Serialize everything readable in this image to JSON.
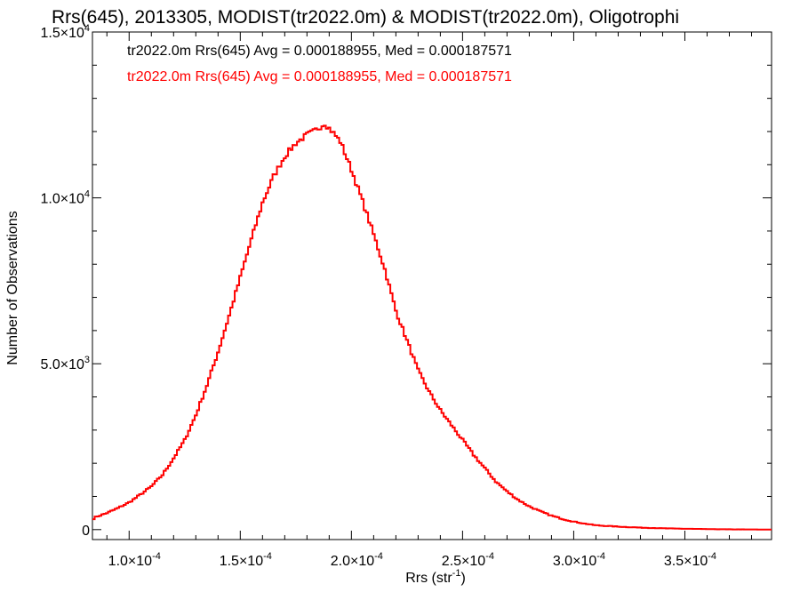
{
  "chart_data": {
    "type": "line",
    "title": "Rrs(645), 2013305, MODIST(tr2022.0m) & MODIST(tr2022.0m), Oligotrophi",
    "xlabel": "Rrs (str",
    "xlabel_sup": "-1",
    "xlabel_close": ")",
    "ylabel": "Number of Observations",
    "xlim": [
      8.35e-05,
      0.000389
    ],
    "ylim": [
      -300,
      15000
    ],
    "x_ticks": [
      {
        "value": 0.0001,
        "mant": "1.0×10",
        "exp": "-4"
      },
      {
        "value": 0.00015,
        "mant": "1.5×10",
        "exp": "-4"
      },
      {
        "value": 0.0002,
        "mant": "2.0×10",
        "exp": "-4"
      },
      {
        "value": 0.00025,
        "mant": "2.5×10",
        "exp": "-4"
      },
      {
        "value": 0.0003,
        "mant": "3.0×10",
        "exp": "-4"
      },
      {
        "value": 0.00035,
        "mant": "3.5×10",
        "exp": "-4"
      }
    ],
    "y_ticks": [
      {
        "value": 0,
        "mant": "0",
        "exp": ""
      },
      {
        "value": 5000,
        "mant": "5.0×10",
        "exp": "3"
      },
      {
        "value": 10000,
        "mant": "1.0×10",
        "exp": "4"
      },
      {
        "value": 15000,
        "mant": "1.5×10",
        "exp": "4"
      }
    ],
    "annotations": [
      {
        "text": "tr2022.0m Rrs(645) Avg = 0.000188955, Med = 0.000187571",
        "color": "#000000"
      },
      {
        "text": "tr2022.0m Rrs(645) Avg = 0.000188955, Med = 0.000187571",
        "color": "#ff0000"
      }
    ],
    "series": [
      {
        "color": "#ff0000",
        "bin_width": 1e-06,
        "x": [
          8.35e-05,
          8.5e-05,
          9e-05,
          9.5e-05,
          0.0001,
          0.000105,
          0.00011,
          0.000115,
          0.00012,
          0.000125,
          0.00013,
          0.000135,
          0.00014,
          0.000145,
          0.00015,
          0.000155,
          0.00016,
          0.000165,
          0.00017,
          0.000175,
          0.00018,
          0.000183,
          0.000186,
          0.000188,
          0.00019,
          0.000192,
          0.000195,
          0.0002,
          0.000205,
          0.00021,
          0.000215,
          0.00022,
          0.000225,
          0.00023,
          0.000235,
          0.00024,
          0.000245,
          0.00025,
          0.000255,
          0.00026,
          0.000265,
          0.00027,
          0.000275,
          0.00028,
          0.000285,
          0.00029,
          0.000295,
          0.0003,
          0.000305,
          0.00031,
          0.00032,
          0.00033,
          0.00034,
          0.00035,
          0.00036,
          0.00037,
          0.00038,
          0.000389
        ],
        "values": [
          300,
          380,
          500,
          650,
          820,
          1050,
          1300,
          1650,
          2150,
          2700,
          3450,
          4350,
          5350,
          6450,
          7600,
          8750,
          9850,
          10650,
          11250,
          11650,
          11900,
          12000,
          12150,
          12250,
          12100,
          11950,
          11700,
          10850,
          9900,
          8900,
          7850,
          6600,
          5700,
          4800,
          4150,
          3600,
          3150,
          2700,
          2250,
          1850,
          1450,
          1150,
          900,
          700,
          550,
          420,
          320,
          240,
          180,
          130,
          90,
          60,
          40,
          25,
          15,
          8,
          4,
          0
        ]
      }
    ]
  }
}
